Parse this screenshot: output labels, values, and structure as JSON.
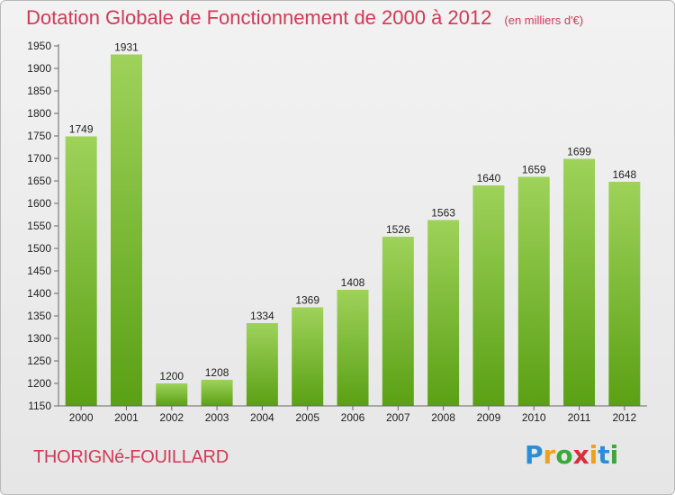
{
  "header": {
    "title": "Dotation Globale de Fonctionnement de 2000 à 2012",
    "subtitle": "(en milliers d'€)"
  },
  "footer": {
    "commune": "THORIGNé-FOUILLARD",
    "logo_text": "Proxiti",
    "logo_colors": [
      "#2a8ed6",
      "#f0a020",
      "#3aa83a",
      "#d6303a",
      "#f0a020",
      "#2a8ed6",
      "#3aa83a"
    ]
  },
  "colors": {
    "bar_top": "#9ed25a",
    "bar_bottom": "#5aa014",
    "axis": "#666666",
    "text_accent": "#d33a56"
  },
  "chart_data": {
    "type": "bar",
    "title": "Dotation Globale de Fonctionnement de 2000 à 2012",
    "subtitle": "(en milliers d'€)",
    "categories": [
      "2000",
      "2001",
      "2002",
      "2003",
      "2004",
      "2005",
      "2006",
      "2007",
      "2008",
      "2009",
      "2010",
      "2011",
      "2012"
    ],
    "values": [
      1749,
      1931,
      1200,
      1208,
      1334,
      1369,
      1408,
      1526,
      1563,
      1640,
      1659,
      1699,
      1648
    ],
    "ylim": [
      1150,
      1950
    ],
    "yticks": [
      1150,
      1200,
      1250,
      1300,
      1350,
      1400,
      1450,
      1500,
      1550,
      1600,
      1650,
      1700,
      1750,
      1800,
      1850,
      1900,
      1950
    ],
    "grid": false,
    "data_labels": true
  }
}
